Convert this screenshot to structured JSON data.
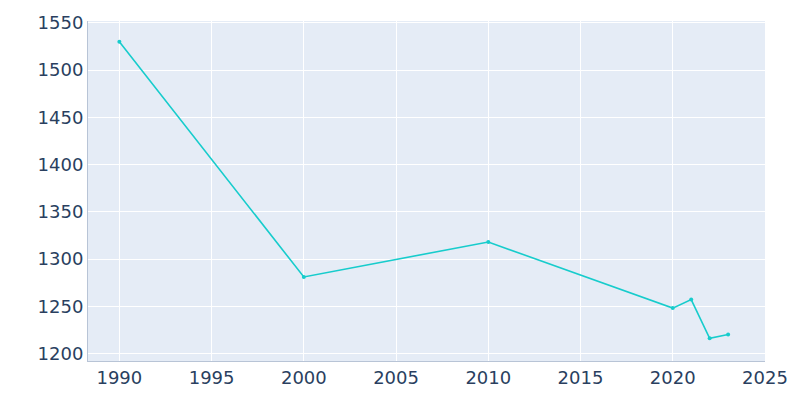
{
  "chart_data": {
    "type": "line",
    "x": [
      1990,
      2000,
      2010,
      2020,
      2021,
      2022,
      2023
    ],
    "values": [
      1530,
      1281,
      1318,
      1248,
      1257,
      1216,
      1220
    ],
    "color": "#17cccc",
    "marker": "circle",
    "xlim": [
      1988.3,
      2025
    ],
    "ylim": [
      1192,
      1552
    ],
    "xticks": [
      1990,
      1995,
      2000,
      2005,
      2010,
      2015,
      2020,
      2025
    ],
    "yticks": [
      1200,
      1250,
      1300,
      1350,
      1400,
      1450,
      1500,
      1550
    ],
    "grid": true
  }
}
